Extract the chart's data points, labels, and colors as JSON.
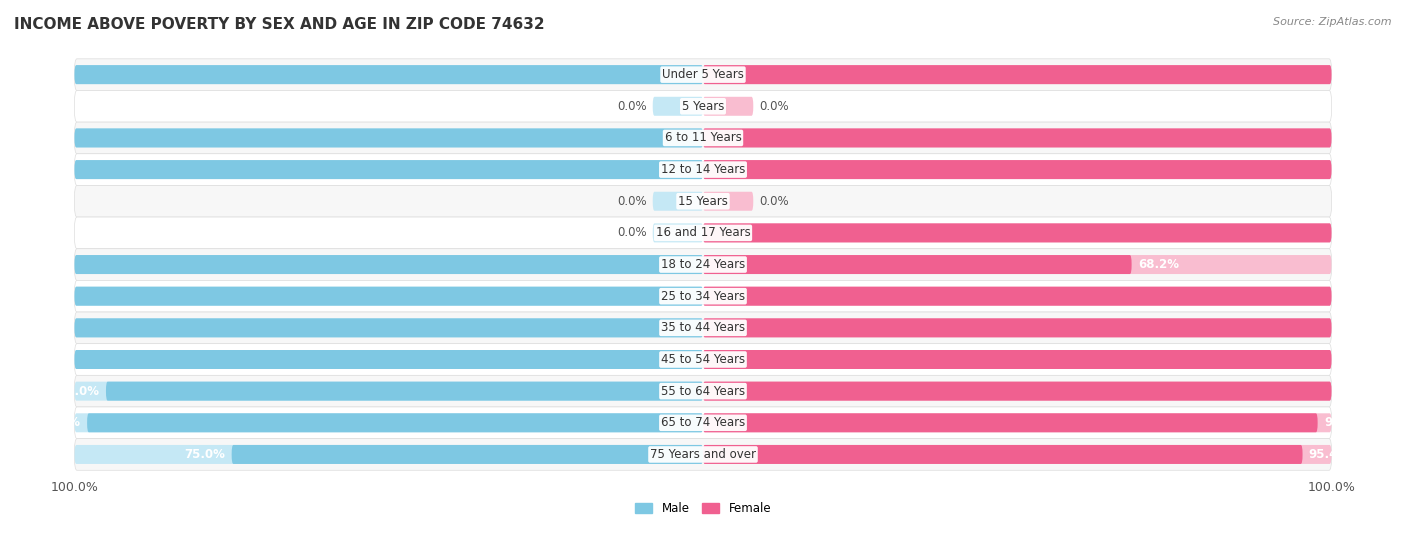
{
  "title": "INCOME ABOVE POVERTY BY SEX AND AGE IN ZIP CODE 74632",
  "source": "Source: ZipAtlas.com",
  "categories": [
    "Under 5 Years",
    "5 Years",
    "6 to 11 Years",
    "12 to 14 Years",
    "15 Years",
    "16 and 17 Years",
    "18 to 24 Years",
    "25 to 34 Years",
    "35 to 44 Years",
    "45 to 54 Years",
    "55 to 64 Years",
    "65 to 74 Years",
    "75 Years and over"
  ],
  "male_values": [
    100.0,
    0.0,
    100.0,
    100.0,
    0.0,
    0.0,
    100.0,
    100.0,
    100.0,
    100.0,
    95.0,
    98.0,
    75.0
  ],
  "female_values": [
    100.0,
    0.0,
    100.0,
    100.0,
    0.0,
    100.0,
    68.2,
    100.0,
    100.0,
    100.0,
    100.0,
    97.8,
    95.4
  ],
  "male_color": "#7EC8E3",
  "male_color_light": "#C5E8F5",
  "female_color": "#F06090",
  "female_color_light": "#F9BDD0",
  "male_label": "Male",
  "female_label": "Female",
  "background_color": "#ffffff",
  "row_even_color": "#f7f7f7",
  "row_odd_color": "#ffffff",
  "row_border_color": "#dddddd",
  "title_fontsize": 11,
  "label_fontsize": 8.5,
  "tick_fontsize": 9,
  "value_fontsize": 8.5
}
